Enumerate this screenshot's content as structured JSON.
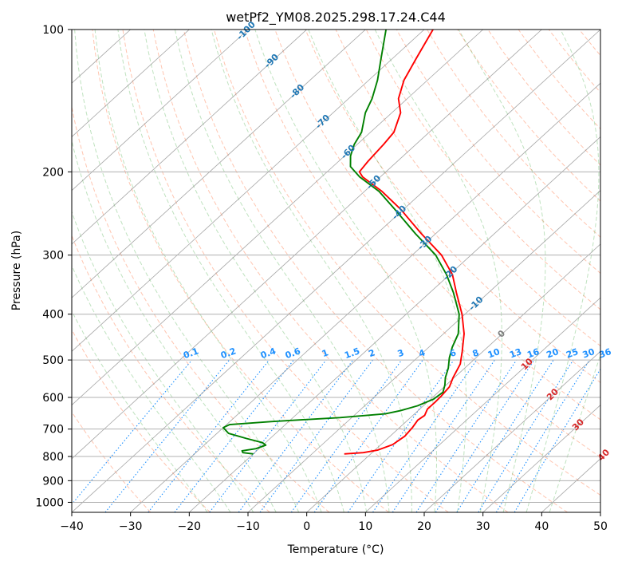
{
  "chart_data": {
    "type": "skew-t",
    "title": "wetPf2_YM08.2025.298.17.24.C44",
    "xlabel": "Temperature (°C)",
    "ylabel": "Pressure (hPa)",
    "xlim": [
      -40,
      50
    ],
    "ylim": [
      1050,
      100
    ],
    "xticks": [
      -40,
      -30,
      -20,
      -10,
      0,
      10,
      20,
      30,
      40,
      50
    ],
    "yticks": [
      100,
      200,
      300,
      400,
      500,
      600,
      700,
      800,
      900,
      1000
    ],
    "grid": true,
    "series": [
      {
        "name": "temperature",
        "color": "#ff0000",
        "points": [
          {
            "p": 790,
            "t": -4.5
          },
          {
            "p": 785,
            "t": -1.5
          },
          {
            "p": 775,
            "t": 0.5
          },
          {
            "p": 755,
            "t": 2.0
          },
          {
            "p": 725,
            "t": 2.5
          },
          {
            "p": 695,
            "t": 2.2
          },
          {
            "p": 670,
            "t": 1.7
          },
          {
            "p": 655,
            "t": 2.0
          },
          {
            "p": 635,
            "t": 1.3
          },
          {
            "p": 615,
            "t": 1.3
          },
          {
            "p": 595,
            "t": 1.2
          },
          {
            "p": 570,
            "t": 0.9
          },
          {
            "p": 545,
            "t": -0.2
          },
          {
            "p": 510,
            "t": -1.5
          },
          {
            "p": 480,
            "t": -3.5
          },
          {
            "p": 440,
            "t": -6.5
          },
          {
            "p": 400,
            "t": -10.5
          },
          {
            "p": 360,
            "t": -15.5
          },
          {
            "p": 330,
            "t": -19.5
          },
          {
            "p": 300,
            "t": -25.0
          },
          {
            "p": 270,
            "t": -32.5
          },
          {
            "p": 240,
            "t": -40.5
          },
          {
            "p": 220,
            "t": -47.0
          },
          {
            "p": 205,
            "t": -53.0
          },
          {
            "p": 200,
            "t": -54.5
          },
          {
            "p": 190,
            "t": -55.0
          },
          {
            "p": 175,
            "t": -55.5
          },
          {
            "p": 165,
            "t": -56.0
          },
          {
            "p": 150,
            "t": -58.5
          },
          {
            "p": 140,
            "t": -61.5
          },
          {
            "p": 128,
            "t": -64.0
          },
          {
            "p": 115,
            "t": -66.0
          },
          {
            "p": 100,
            "t": -68.5
          }
        ]
      },
      {
        "name": "dewpoint",
        "color": "#008000",
        "points": [
          {
            "p": 790,
            "t": -20.0
          },
          {
            "p": 785,
            "t": -22.0
          },
          {
            "p": 778,
            "t": -22.5
          },
          {
            "p": 770,
            "t": -20.5
          },
          {
            "p": 757,
            "t": -19.5
          },
          {
            "p": 748,
            "t": -20.5
          },
          {
            "p": 733,
            "t": -24.0
          },
          {
            "p": 715,
            "t": -28.0
          },
          {
            "p": 695,
            "t": -30.0
          },
          {
            "p": 685,
            "t": -29.5
          },
          {
            "p": 675,
            "t": -23.0
          },
          {
            "p": 662,
            "t": -12.0
          },
          {
            "p": 650,
            "t": -5.0
          },
          {
            "p": 640,
            "t": -3.0
          },
          {
            "p": 625,
            "t": -1.0
          },
          {
            "p": 605,
            "t": 0.5
          },
          {
            "p": 585,
            "t": 0.8
          },
          {
            "p": 565,
            "t": -0.2
          },
          {
            "p": 545,
            "t": -1.5
          },
          {
            "p": 520,
            "t": -2.8
          },
          {
            "p": 495,
            "t": -4.5
          },
          {
            "p": 470,
            "t": -6.0
          },
          {
            "p": 440,
            "t": -7.5
          },
          {
            "p": 400,
            "t": -11.0
          },
          {
            "p": 360,
            "t": -16.0
          },
          {
            "p": 330,
            "t": -20.5
          },
          {
            "p": 300,
            "t": -26.0
          },
          {
            "p": 270,
            "t": -33.5
          },
          {
            "p": 240,
            "t": -41.5
          },
          {
            "p": 220,
            "t": -47.5
          },
          {
            "p": 205,
            "t": -53.5
          },
          {
            "p": 195,
            "t": -57.0
          },
          {
            "p": 185,
            "t": -59.0
          },
          {
            "p": 175,
            "t": -60.5
          },
          {
            "p": 165,
            "t": -61.5
          },
          {
            "p": 150,
            "t": -64.5
          },
          {
            "p": 140,
            "t": -66.0
          },
          {
            "p": 128,
            "t": -68.5
          },
          {
            "p": 115,
            "t": -72.0
          },
          {
            "p": 100,
            "t": -76.5
          }
        ]
      }
    ],
    "isotherm_labels": [
      "-100",
      "-90",
      "-80",
      "-70",
      "-60",
      "-50",
      "-40",
      "-30",
      "-20",
      "-10",
      "0",
      "10",
      "20",
      "30",
      "40"
    ],
    "isotherm_label_values": [
      -100,
      -90,
      -80,
      -70,
      -60,
      -50,
      -40,
      -30,
      -20,
      -10,
      0,
      10,
      20,
      30,
      40
    ],
    "mixing_ratio_labels": [
      "0.1",
      "0.2",
      "0.4",
      "0.6",
      "1",
      "1.5",
      "2",
      "3",
      "4",
      "6",
      "8",
      "10",
      "13",
      "16",
      "20",
      "25",
      "30",
      "36"
    ],
    "mixing_ratio_values": [
      0.1,
      0.2,
      0.4,
      0.6,
      1,
      1.5,
      2,
      3,
      4,
      6,
      8,
      10,
      13,
      16,
      20,
      25,
      30,
      36
    ],
    "colors": {
      "isotherm": "#7f7f7f",
      "isobar": "#b0b0b0",
      "dry_adiabat": "#ff7f50",
      "moist_adiabat": "#2ca02c",
      "mixing_ratio": "#1e90ff",
      "cold_label": "#1f77b4",
      "zero_label": "#7f7f7f",
      "warm_label": "#d62728",
      "lcl_curve": "#d2b48c"
    }
  }
}
